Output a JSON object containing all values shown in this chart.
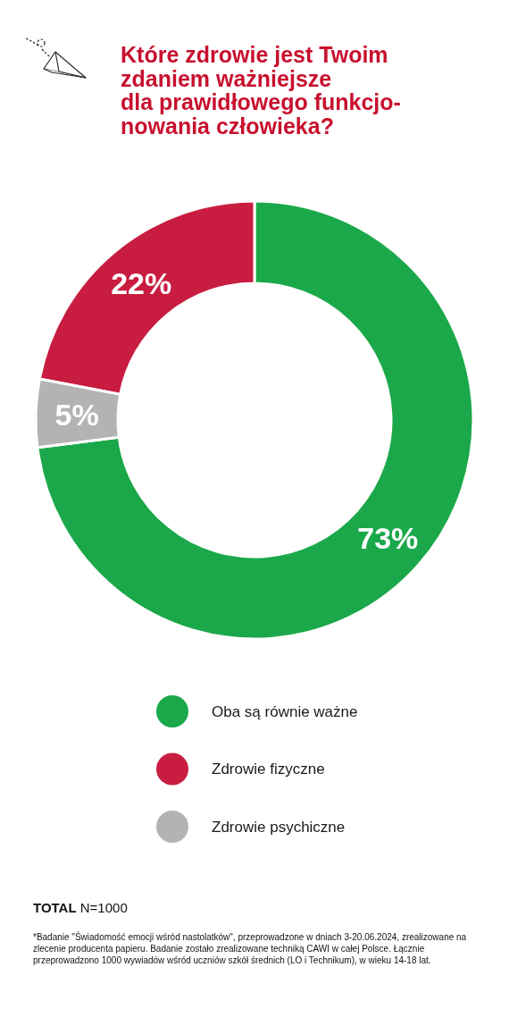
{
  "chart_data": {
    "type": "donut",
    "title": "Które zdrowie jest Twoim\nzdaniem ważniejsze\ndla prawidłowego funkcjo-\nnowania człowieka?",
    "categories": [
      "Oba są równie ważne",
      "Zdrowie fizyczne",
      "Zdrowie psychiczne"
    ],
    "values": [
      73,
      22,
      5
    ],
    "colors": [
      "#1ba84a",
      "#c81d40",
      "#b3b3b3"
    ],
    "value_labels": [
      "73%",
      "22%",
      "5%"
    ],
    "legend": "bottom",
    "annotations": [
      "TOTAL N=1000",
      "*Badanie \"Świadomość emocji wśród nastolatków\", przeprowadzone w dniach 3-20.06.2024, zrealizowane na zlecenie producenta papieru. Badanie zostało zrealizowane techniką CAWI w całej Polsce. Łącznie przeprowadzono 1000 wywiadów wśród uczniów szkół średnich (LO i Technikum), w wieku 14-18 lat."
    ]
  }
}
